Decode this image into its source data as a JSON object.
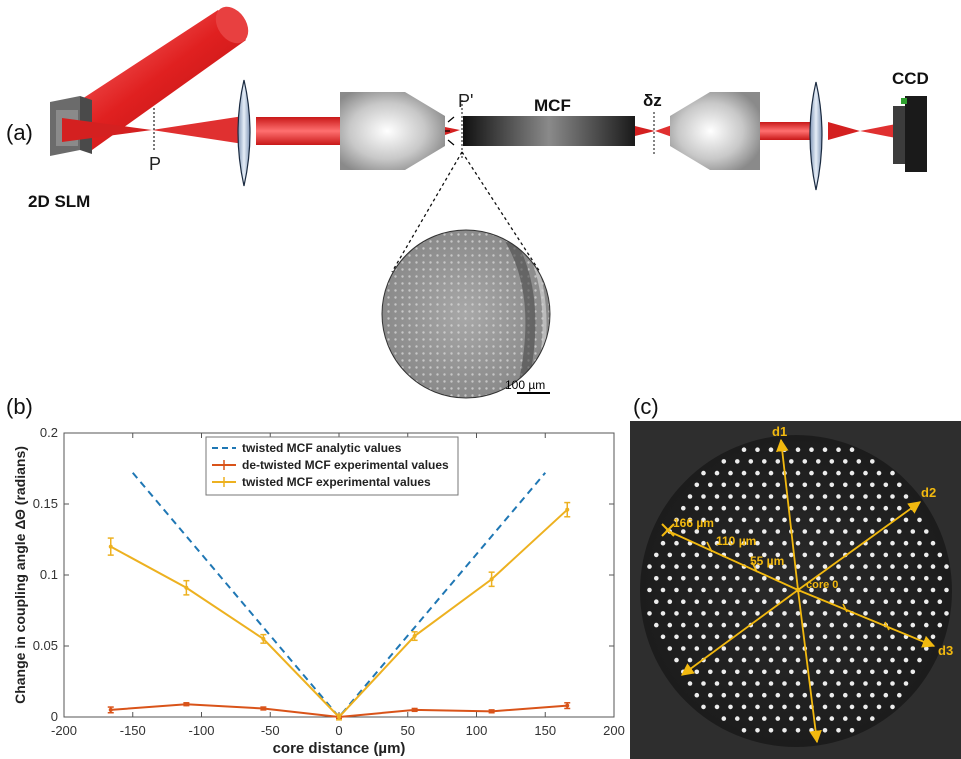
{
  "panel_a": {
    "label": "(a)",
    "slm_label": "2D SLM",
    "p_label": "P",
    "p_prime_label": "P'",
    "mcf_label": "MCF",
    "dz_label": "δz",
    "ccd_label": "CCD",
    "scalebar_label": "100 µm"
  },
  "panel_b": {
    "label": "(b)"
  },
  "panel_c": {
    "label": "(c)",
    "d1": "d1",
    "d2": "d2",
    "d3": "d3",
    "r166": "166 µm",
    "r110": "110 µm",
    "r55": "55 µm",
    "core0": "core 0"
  },
  "chart_data": {
    "type": "line",
    "xlabel": "core distance (µm)",
    "ylabel": "Change in coupling angle ΔΘ (radians)",
    "xlim": [
      -200,
      200
    ],
    "ylim": [
      0,
      0.2
    ],
    "xticks": [
      "-200",
      "-150",
      "-100",
      "-50",
      "0",
      "50",
      "100",
      "150",
      "200"
    ],
    "yticks": [
      "0",
      "0.05",
      "0.1",
      "0.15",
      "0.2"
    ],
    "grid": false,
    "legend_position": "top-center",
    "series": [
      {
        "name": "twisted MCF analytic values",
        "style": "dashed",
        "color": "#1f77b4",
        "x": [
          -150,
          0,
          150
        ],
        "y": [
          0.172,
          0.0,
          0.172
        ]
      },
      {
        "name": "de-twisted MCF experimental values",
        "style": "solid-errorbar",
        "color": "#d95319",
        "x": [
          -166,
          -111,
          -55,
          0,
          55,
          111,
          166
        ],
        "y": [
          0.005,
          0.009,
          0.006,
          0.0,
          0.005,
          0.004,
          0.008
        ],
        "err": [
          0.002,
          0.001,
          0.001,
          0.001,
          0.001,
          0.001,
          0.002
        ]
      },
      {
        "name": "twisted MCF experimental values",
        "style": "solid-errorbar",
        "color": "#edb120",
        "x": [
          -166,
          -111,
          -55,
          0,
          55,
          111,
          166
        ],
        "y": [
          0.12,
          0.091,
          0.055,
          0.0,
          0.057,
          0.097,
          0.146
        ],
        "err": [
          0.006,
          0.005,
          0.003,
          0.002,
          0.003,
          0.005,
          0.005
        ]
      }
    ]
  },
  "colors": {
    "beam": "#d42020",
    "accent_yellow": "#f2b90f",
    "mcf_fill": "#222222"
  }
}
